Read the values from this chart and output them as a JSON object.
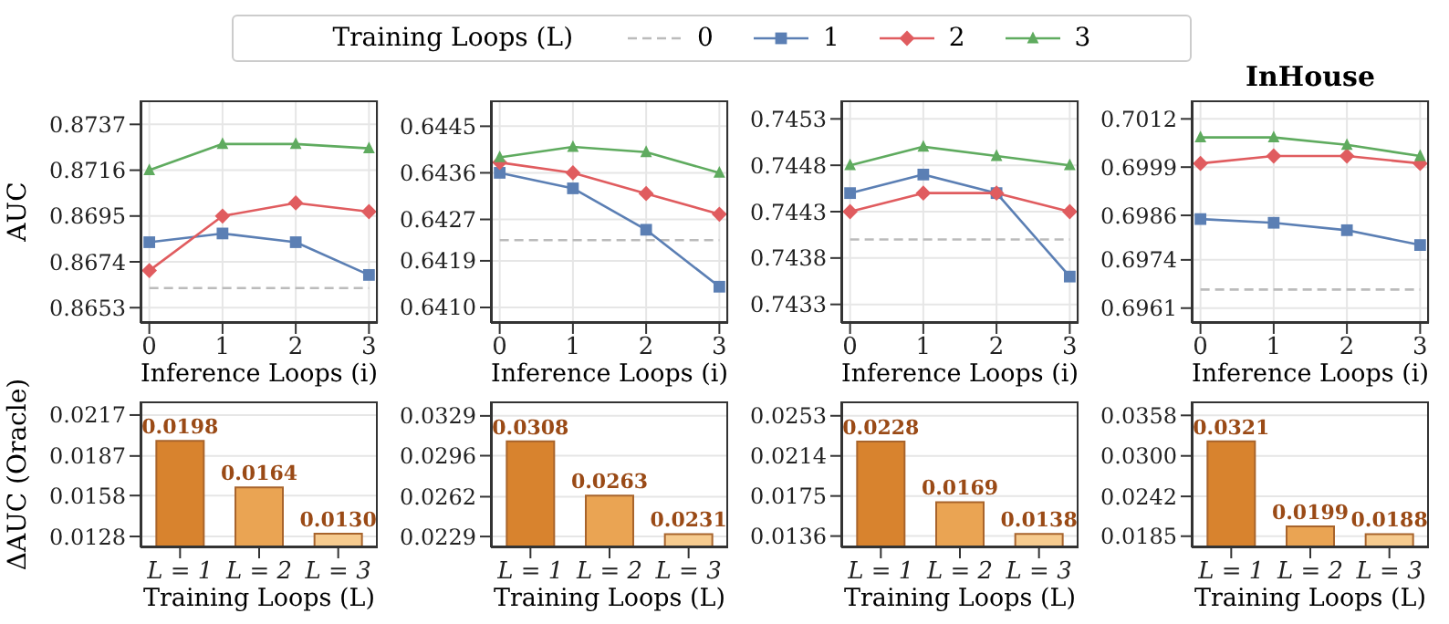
{
  "chart_data": [
    {
      "type": "line",
      "legend": "top",
      "legend_title": "Training Loops (L)",
      "ylabel": "AUC",
      "xlabel": "Inference Loops (i)",
      "x": [
        0,
        1,
        2,
        3
      ],
      "xlim": [
        -0.12,
        3.12
      ],
      "xticks": [
        0,
        1,
        2,
        3
      ],
      "ylim": [
        0.8646,
        0.8748
      ],
      "yticks": [
        0.8653,
        0.8674,
        0.8695,
        0.8716,
        0.8737
      ],
      "grid": true,
      "series": [
        {
          "name": "0",
          "color": "#bbbbbb",
          "line_style": "dashed",
          "marker": "none",
          "values": [
            0.8662,
            0.8662,
            0.8662,
            0.8662
          ]
        },
        {
          "name": "1",
          "color": "#5b7fb4",
          "marker": "square",
          "values": [
            0.8683,
            0.8687,
            0.8683,
            0.8668
          ]
        },
        {
          "name": "2",
          "color": "#e05c5f",
          "marker": "diamond",
          "values": [
            0.867,
            0.8695,
            0.8701,
            0.8697
          ]
        },
        {
          "name": "3",
          "color": "#5fab5f",
          "marker": "triangle",
          "values": [
            0.8716,
            0.8728,
            0.8728,
            0.8726
          ]
        }
      ]
    },
    {
      "type": "line",
      "xlabel": "Inference Loops (i)",
      "x": [
        0,
        1,
        2,
        3
      ],
      "xlim": [
        -0.12,
        3.12
      ],
      "xticks": [
        0,
        1,
        2,
        3
      ],
      "ylim": [
        0.6407,
        0.645
      ],
      "yticks": [
        {
          "value": 0.641,
          "label": "0.6410"
        },
        0.6419,
        0.6427,
        0.6436,
        0.6445
      ],
      "grid": true,
      "series": [
        {
          "name": "0",
          "color": "#bbbbbb",
          "line_style": "dashed",
          "marker": "none",
          "values": [
            0.6423,
            0.6423,
            0.6423,
            0.6423
          ]
        },
        {
          "name": "1",
          "color": "#5b7fb4",
          "marker": "square",
          "values": [
            0.6436,
            0.6433,
            0.6425,
            0.6414
          ]
        },
        {
          "name": "2",
          "color": "#e05c5f",
          "marker": "diamond",
          "values": [
            0.6438,
            0.6436,
            0.6432,
            0.6428
          ]
        },
        {
          "name": "3",
          "color": "#5fab5f",
          "marker": "triangle",
          "values": [
            0.6439,
            0.6441,
            0.644,
            0.6436
          ]
        }
      ]
    },
    {
      "type": "line",
      "xlabel": "Inference Loops (i)",
      "x": [
        0,
        1,
        2,
        3
      ],
      "xlim": [
        -0.12,
        3.12
      ],
      "xticks": [
        0,
        1,
        2,
        3
      ],
      "ylim": [
        0.7431,
        0.7455
      ],
      "yticks": [
        0.7433,
        0.7438,
        0.7443,
        0.7448,
        0.7453
      ],
      "grid": true,
      "series": [
        {
          "name": "0",
          "color": "#bbbbbb",
          "line_style": "dashed",
          "marker": "none",
          "values": [
            0.744,
            0.744,
            0.744,
            0.744
          ]
        },
        {
          "name": "1",
          "color": "#5b7fb4",
          "marker": "square",
          "values": [
            0.7445,
            0.7447,
            0.7445,
            0.7436
          ]
        },
        {
          "name": "2",
          "color": "#e05c5f",
          "marker": "diamond",
          "values": [
            0.7443,
            0.7445,
            0.7445,
            0.7443
          ]
        },
        {
          "name": "3",
          "color": "#5fab5f",
          "marker": "triangle",
          "values": [
            0.7448,
            0.745,
            0.7449,
            0.7448
          ]
        }
      ]
    },
    {
      "type": "line",
      "title": "InHouse",
      "xlabel": "Inference Loops (i)",
      "x": [
        0,
        1,
        2,
        3
      ],
      "xlim": [
        -0.12,
        3.12
      ],
      "xticks": [
        0,
        1,
        2,
        3
      ],
      "ylim": [
        0.6957,
        0.7017
      ],
      "yticks": [
        0.6961,
        0.6974,
        0.6986,
        0.6999,
        0.7012
      ],
      "grid": true,
      "series": [
        {
          "name": "0",
          "color": "#bbbbbb",
          "line_style": "dashed",
          "marker": "none",
          "values": [
            0.6966,
            0.6966,
            0.6966,
            0.6966
          ]
        },
        {
          "name": "1",
          "color": "#5b7fb4",
          "marker": "square",
          "values": [
            0.6985,
            0.6984,
            0.6982,
            0.6978
          ]
        },
        {
          "name": "2",
          "color": "#e05c5f",
          "marker": "diamond",
          "values": [
            0.7,
            0.7002,
            0.7002,
            0.7
          ]
        },
        {
          "name": "3",
          "color": "#5fab5f",
          "marker": "triangle",
          "values": [
            0.7007,
            0.7007,
            0.7005,
            0.7002
          ]
        }
      ]
    },
    {
      "type": "bar",
      "ylabel": "ΔAUC (Oracle)",
      "xlabel": "Training Loops (L)",
      "categories": [
        "L = 1",
        "L = 2",
        "L = 3"
      ],
      "values": [
        0.0198,
        0.0164,
        0.013
      ],
      "value_labels": [
        "0.0198",
        "0.0164",
        "0.0130"
      ],
      "colors": [
        "#d8832e",
        "#eaa453",
        "#f6cb8f"
      ],
      "ylim": [
        0.012,
        0.0227
      ],
      "yticks": [
        0.0128,
        0.0158,
        0.0187,
        0.0217
      ],
      "grid": "y"
    },
    {
      "type": "bar",
      "xlabel": "Training Loops (L)",
      "categories": [
        "L = 1",
        "L = 2",
        "L = 3"
      ],
      "values": [
        0.0308,
        0.0263,
        0.0231
      ],
      "value_labels": [
        "0.0308",
        "0.0263",
        "0.0231"
      ],
      "colors": [
        "#d8832e",
        "#eaa453",
        "#f6cb8f"
      ],
      "ylim": [
        0.022,
        0.0341
      ],
      "yticks": [
        0.0229,
        0.0262,
        0.0296,
        0.0329
      ],
      "grid": "y"
    },
    {
      "type": "bar",
      "xlabel": "Training Loops (L)",
      "categories": [
        "L = 1",
        "L = 2",
        "L = 3"
      ],
      "values": [
        0.0228,
        0.0169,
        0.0138
      ],
      "value_labels": [
        "0.0228",
        "0.0169",
        "0.0138"
      ],
      "colors": [
        "#d8832e",
        "#eaa453",
        "#f6cb8f"
      ],
      "ylim": [
        0.0125,
        0.0267
      ],
      "yticks": [
        0.0136,
        0.0175,
        0.0214,
        0.0253
      ],
      "grid": "y"
    },
    {
      "type": "bar",
      "xlabel": "Training Loops (L)",
      "categories": [
        "L = 1",
        "L = 2",
        "L = 3"
      ],
      "values": [
        0.0321,
        0.0199,
        0.0188
      ],
      "value_labels": [
        "0.0321",
        "0.0199",
        "0.0188"
      ],
      "colors": [
        "#d8832e",
        "#eaa453",
        "#f6cb8f"
      ],
      "ylim": [
        0.0169,
        0.0378
      ],
      "yticks": [
        0.0185,
        {
          "value": 0.03,
          "label": "0.0300"
        },
        0.0242,
        0.0358
      ],
      "grid": "y"
    }
  ]
}
